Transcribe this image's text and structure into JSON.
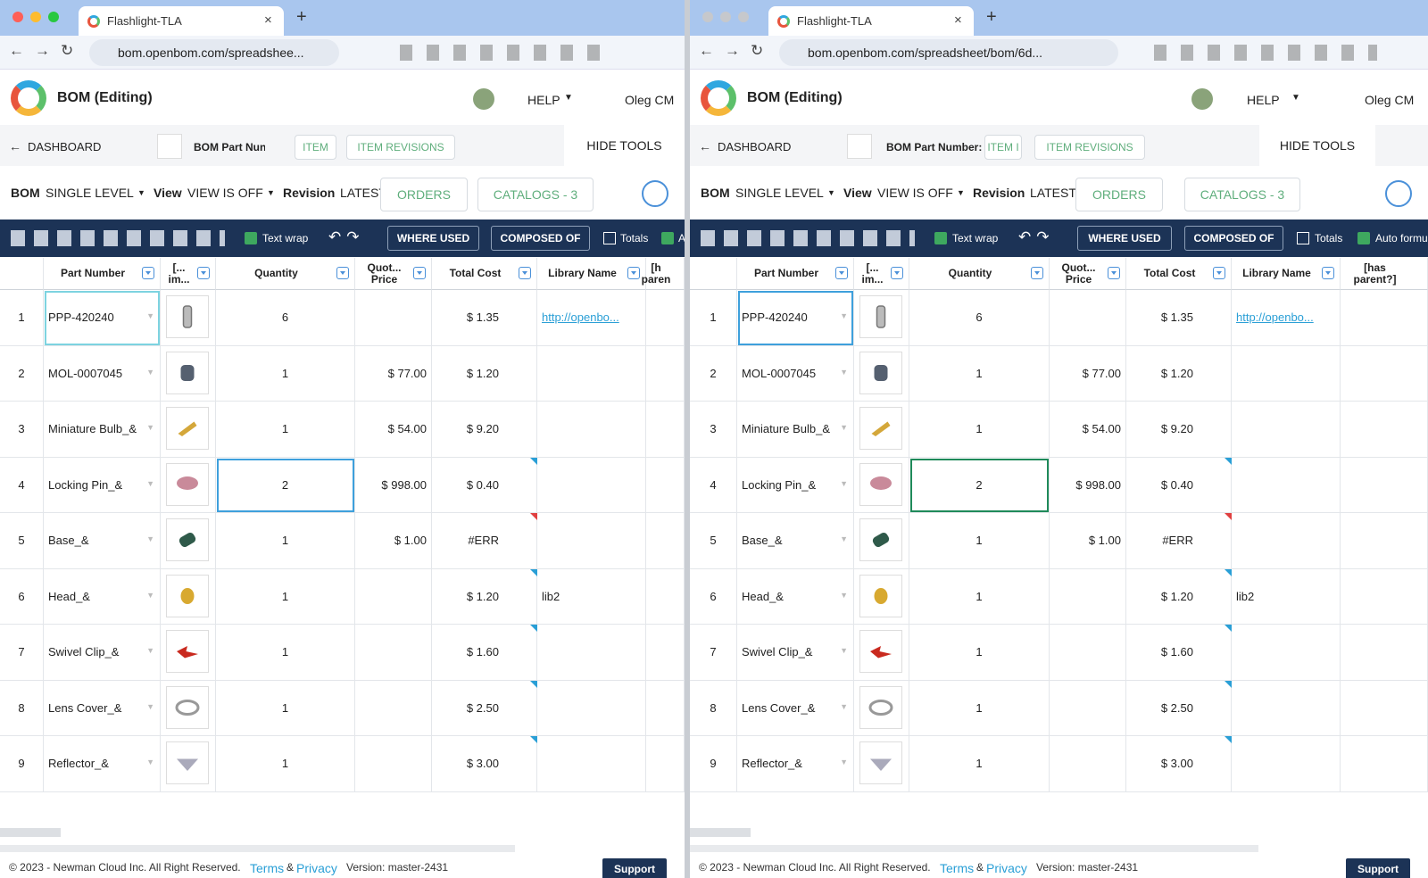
{
  "windows": [
    {
      "tab": "Flashlight-TLA",
      "url": "bom.openbom.com/spreadshee...",
      "app_title": "BOM (Editing)",
      "help": "HELP",
      "user": "Oleg CM",
      "dashboard": "DASHBOARD",
      "part_number_label": "BOM Part Nun",
      "item": "ITEM",
      "item_revisions": "ITEM REVISIONS",
      "hide_tools": "HIDE TOOLS",
      "bom_label": "BOM",
      "bom_value": "SINGLE LEVEL",
      "view_label": "View",
      "view_value": "VIEW IS OFF",
      "revision_label": "Revision",
      "revision_value": "LATEST",
      "orders": "ORDERS",
      "catalogs": "CATALOGS - 3",
      "text_wrap": "Text wrap",
      "where_used": "WHERE USED",
      "composed_of": "COMPOSED OF",
      "totals": "Totals",
      "auto": "A",
      "columns": [
        "Part Number",
        "[... im...",
        "Quantity",
        "Quot... Price",
        "Total Cost",
        "Library Name",
        "[h paren"
      ],
      "rows": [
        {
          "n": 1,
          "part": "PPP-420240",
          "qty": 6,
          "total": "$ 1.35",
          "library": "http://openbo..."
        },
        {
          "n": 2,
          "part": "MOL-0007045",
          "qty": 1,
          "price": "$ 77.00",
          "total": "$ 1.20"
        },
        {
          "n": 3,
          "part": "Miniature Bulb_&",
          "qty": 1,
          "price": "$ 54.00",
          "total": "$ 9.20"
        },
        {
          "n": 4,
          "part": "Locking Pin_&",
          "qty": 2,
          "price": "$ 998.00",
          "total": "$ 0.40"
        },
        {
          "n": 5,
          "part": "Base_&",
          "qty": 1,
          "price": "$ 1.00",
          "total": "#ERR"
        },
        {
          "n": 6,
          "part": "Head_&",
          "qty": 1,
          "total": "$ 1.20",
          "library": "lib2"
        },
        {
          "n": 7,
          "part": "Swivel Clip_&",
          "qty": 1,
          "total": "$ 1.60"
        },
        {
          "n": 8,
          "part": "Lens Cover_&",
          "qty": 1,
          "total": "$ 2.50"
        },
        {
          "n": 9,
          "part": "Reflector_&",
          "qty": 1,
          "total": "$ 3.00"
        }
      ],
      "footer": {
        "copyright": "© 2023 - Newman Cloud Inc. All Right Reserved.",
        "terms": "Terms",
        "amp": "&",
        "privacy": "Privacy",
        "version": "Version: master-2431",
        "support": "Support"
      }
    },
    {
      "tab": "Flashlight-TLA",
      "url": "bom.openbom.com/spreadsheet/bom/6d...",
      "app_title": "BOM (Editing)",
      "help": "HELP",
      "user": "Oleg CM",
      "dashboard": "DASHBOARD",
      "part_number_label": "BOM Part Number:  Fla",
      "item": "ITEM I",
      "item_revisions": "ITEM REVISIONS",
      "hide_tools": "HIDE TOOLS",
      "bom_label": "BOM",
      "bom_value": "SINGLE LEVEL",
      "view_label": "View",
      "view_value": "VIEW IS OFF",
      "revision_label": "Revision",
      "revision_value": "LATEST",
      "orders": "ORDERS",
      "catalogs": "CATALOGS - 3",
      "text_wrap": "Text wrap",
      "where_used": "WHERE USED",
      "composed_of": "COMPOSED OF",
      "totals": "Totals",
      "auto": "Auto formul",
      "columns": [
        "Part Number",
        "[... im...",
        "Quantity",
        "Quot... Price",
        "Total Cost",
        "Library Name",
        "[has parent?]"
      ],
      "rows": [
        {
          "n": 1,
          "part": "PPP-420240",
          "qty": 6,
          "total": "$ 1.35",
          "library": "http://openbo..."
        },
        {
          "n": 2,
          "part": "MOL-0007045",
          "qty": 1,
          "price": "$ 77.00",
          "total": "$ 1.20"
        },
        {
          "n": 3,
          "part": "Miniature Bulb_&",
          "qty": 1,
          "price": "$ 54.00",
          "total": "$ 9.20"
        },
        {
          "n": 4,
          "part": "Locking Pin_&",
          "qty": 2,
          "price": "$ 998.00",
          "total": "$ 0.40"
        },
        {
          "n": 5,
          "part": "Base_&",
          "qty": 1,
          "price": "$ 1.00",
          "total": "#ERR"
        },
        {
          "n": 6,
          "part": "Head_&",
          "qty": 1,
          "total": "$ 1.20",
          "library": "lib2"
        },
        {
          "n": 7,
          "part": "Swivel Clip_&",
          "qty": 1,
          "total": "$ 1.60"
        },
        {
          "n": 8,
          "part": "Lens Cover_&",
          "qty": 1,
          "total": "$ 2.50"
        },
        {
          "n": 9,
          "part": "Reflector_&",
          "qty": 1,
          "total": "$ 3.00"
        }
      ],
      "footer": {
        "copyright": "© 2023 - Newman Cloud Inc. All Right Reserved.",
        "terms": "Terms",
        "amp": "&",
        "privacy": "Privacy",
        "version": "Version: master-2431",
        "support": "Support"
      }
    }
  ]
}
